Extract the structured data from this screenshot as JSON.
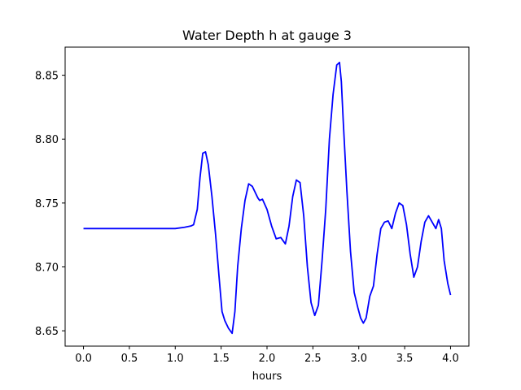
{
  "chart_data": {
    "type": "line",
    "title": "Water Depth h at gauge 3",
    "xlabel": "hours",
    "ylabel": "",
    "xlim": [
      -0.2,
      4.2
    ],
    "ylim": [
      8.638,
      8.872
    ],
    "grid": false,
    "line_color": "#0000ff",
    "xticks": [
      0.0,
      0.5,
      1.0,
      1.5,
      2.0,
      2.5,
      3.0,
      3.5,
      4.0
    ],
    "xtick_labels": [
      "0.0",
      "0.5",
      "1.0",
      "1.5",
      "2.0",
      "2.5",
      "3.0",
      "3.5",
      "4.0"
    ],
    "yticks": [
      8.65,
      8.7,
      8.75,
      8.8,
      8.85
    ],
    "ytick_labels": [
      "8.65",
      "8.70",
      "8.75",
      "8.80",
      "8.85"
    ],
    "series": [
      {
        "name": "",
        "x": [
          0.0,
          0.5,
          0.8,
          1.0,
          1.1,
          1.17,
          1.2,
          1.24,
          1.27,
          1.3,
          1.33,
          1.36,
          1.4,
          1.44,
          1.48,
          1.51,
          1.54,
          1.58,
          1.62,
          1.65,
          1.68,
          1.72,
          1.76,
          1.8,
          1.84,
          1.88,
          1.9,
          1.92,
          1.95,
          2.0,
          2.05,
          2.1,
          2.15,
          2.2,
          2.24,
          2.28,
          2.32,
          2.36,
          2.4,
          2.44,
          2.48,
          2.52,
          2.56,
          2.6,
          2.64,
          2.68,
          2.72,
          2.76,
          2.79,
          2.81,
          2.83,
          2.87,
          2.91,
          2.95,
          2.99,
          3.02,
          3.05,
          3.08,
          3.12,
          3.16,
          3.2,
          3.24,
          3.28,
          3.32,
          3.36,
          3.4,
          3.44,
          3.48,
          3.52,
          3.56,
          3.6,
          3.64,
          3.68,
          3.72,
          3.76,
          3.8,
          3.84,
          3.87,
          3.9,
          3.93,
          3.97,
          4.0
        ],
        "y": [
          8.73,
          8.73,
          8.73,
          8.73,
          8.731,
          8.732,
          8.733,
          8.745,
          8.77,
          8.789,
          8.79,
          8.78,
          8.755,
          8.725,
          8.69,
          8.665,
          8.658,
          8.652,
          8.648,
          8.665,
          8.7,
          8.73,
          8.752,
          8.765,
          8.763,
          8.757,
          8.754,
          8.752,
          8.753,
          8.745,
          8.732,
          8.722,
          8.723,
          8.718,
          8.732,
          8.755,
          8.768,
          8.766,
          8.74,
          8.7,
          8.672,
          8.662,
          8.67,
          8.705,
          8.745,
          8.8,
          8.835,
          8.858,
          8.86,
          8.845,
          8.815,
          8.76,
          8.712,
          8.68,
          8.668,
          8.66,
          8.656,
          8.66,
          8.677,
          8.685,
          8.71,
          8.73,
          8.735,
          8.736,
          8.73,
          8.742,
          8.75,
          8.748,
          8.733,
          8.71,
          8.692,
          8.7,
          8.72,
          8.735,
          8.74,
          8.735,
          8.73,
          8.737,
          8.73,
          8.705,
          8.687,
          8.678
        ]
      }
    ]
  }
}
